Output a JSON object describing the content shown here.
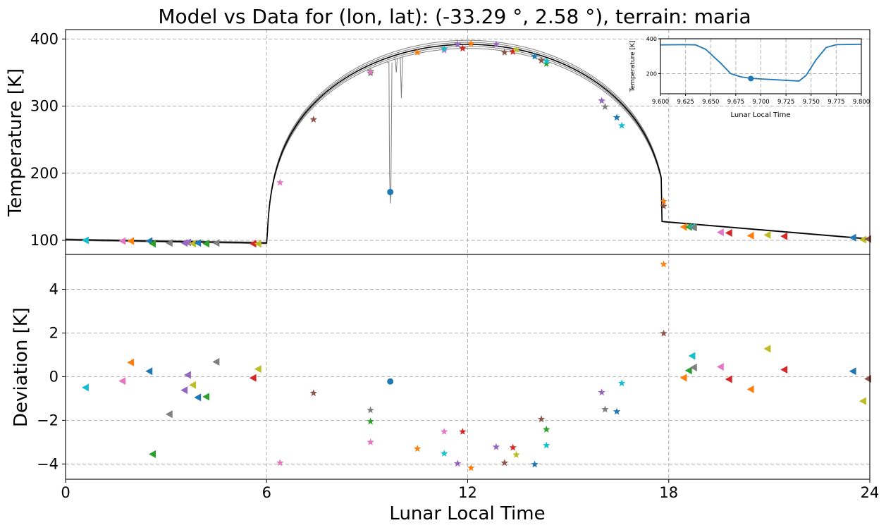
{
  "title": "Model vs Data for (lon, lat): (-33.29 °, 2.58 °), terrain: maria",
  "colors": {
    "model_curve": "#000000",
    "model_band": "#7f7f7f",
    "highlight_point": "#1f77b4",
    "grid": "#b0b0b0",
    "palette": [
      "#1f77b4",
      "#ff7f0e",
      "#2ca02c",
      "#d62728",
      "#9467bd",
      "#8c564b",
      "#e377c2",
      "#7f7f7f",
      "#bcbd22",
      "#17becf"
    ]
  },
  "chart_data": [
    {
      "id": "temperature",
      "type": "line",
      "ylabel": "Temperature [K]",
      "xlim": [
        0,
        24
      ],
      "ylim": [
        79,
        414
      ],
      "xticks": [
        0,
        6,
        12,
        18,
        24
      ],
      "yticks": [
        100,
        200,
        300,
        400
      ],
      "grid": true,
      "model": {
        "night_start": 101,
        "night_end": 96,
        "dawn_hour": 6.0,
        "noon_temp": 392,
        "dusk_hour": 17.8,
        "dusk_temp": 128,
        "end_temp": 102
      },
      "highlight_point": {
        "x": 9.69,
        "y": 172,
        "marker": "circle"
      },
      "dip_lines": [
        {
          "x": [
            9.6,
            9.65,
            9.67,
            9.69,
            9.71,
            9.74
          ],
          "y": [
            365,
            365,
            200,
            155,
            175,
            365
          ]
        },
        {
          "x": [
            9.8,
            9.84,
            9.87,
            9.9
          ],
          "y": [
            370,
            370,
            350,
            372
          ]
        },
        {
          "x": [
            9.95,
            9.99,
            10.02,
            10.06
          ],
          "y": [
            372,
            372,
            312,
            374
          ]
        }
      ],
      "observations": [
        {
          "x": 0.6,
          "y": 100,
          "m": "tri",
          "c": 9
        },
        {
          "x": 1.7,
          "y": 99,
          "m": "tri",
          "c": 6
        },
        {
          "x": 1.95,
          "y": 99,
          "m": "tri",
          "c": 1
        },
        {
          "x": 2.5,
          "y": 99,
          "m": "tri",
          "c": 0
        },
        {
          "x": 2.6,
          "y": 95,
          "m": "tri",
          "c": 2
        },
        {
          "x": 3.1,
          "y": 96,
          "m": "tri",
          "c": 7
        },
        {
          "x": 3.55,
          "y": 96,
          "m": "tri",
          "c": 4
        },
        {
          "x": 3.65,
          "y": 97,
          "m": "tri",
          "c": 4
        },
        {
          "x": 3.8,
          "y": 95,
          "m": "tri",
          "c": 8
        },
        {
          "x": 3.95,
          "y": 96,
          "m": "tri",
          "c": 0
        },
        {
          "x": 4.2,
          "y": 95,
          "m": "tri",
          "c": 2
        },
        {
          "x": 4.5,
          "y": 96,
          "m": "tri",
          "c": 7
        },
        {
          "x": 5.6,
          "y": 95,
          "m": "tri",
          "c": 3
        },
        {
          "x": 5.75,
          "y": 95,
          "m": "tri",
          "c": 8
        },
        {
          "x": 6.4,
          "y": 186,
          "m": "star",
          "c": 6
        },
        {
          "x": 7.4,
          "y": 280,
          "m": "star",
          "c": 5
        },
        {
          "x": 9.1,
          "y": 349,
          "m": "star",
          "c": 7
        },
        {
          "x": 9.1,
          "y": 352,
          "m": "star",
          "c": 2
        },
        {
          "x": 9.1,
          "y": 351,
          "m": "star",
          "c": 6
        },
        {
          "x": 10.5,
          "y": 380,
          "m": "star",
          "c": 1
        },
        {
          "x": 11.3,
          "y": 383,
          "m": "star",
          "c": 6
        },
        {
          "x": 11.3,
          "y": 385,
          "m": "star",
          "c": 9
        },
        {
          "x": 11.7,
          "y": 392,
          "m": "star",
          "c": 4
        },
        {
          "x": 11.85,
          "y": 386,
          "m": "star",
          "c": 3
        },
        {
          "x": 12.1,
          "y": 393,
          "m": "star",
          "c": 1
        },
        {
          "x": 12.85,
          "y": 392,
          "m": "star",
          "c": 4
        },
        {
          "x": 13.1,
          "y": 380,
          "m": "star",
          "c": 5
        },
        {
          "x": 13.35,
          "y": 381,
          "m": "star",
          "c": 3
        },
        {
          "x": 13.45,
          "y": 384,
          "m": "star",
          "c": 8
        },
        {
          "x": 14.0,
          "y": 374,
          "m": "star",
          "c": 0
        },
        {
          "x": 14.2,
          "y": 368,
          "m": "star",
          "c": 5
        },
        {
          "x": 14.35,
          "y": 363,
          "m": "star",
          "c": 2
        },
        {
          "x": 14.35,
          "y": 367,
          "m": "star",
          "c": 9
        },
        {
          "x": 16.0,
          "y": 308,
          "m": "star",
          "c": 4
        },
        {
          "x": 16.1,
          "y": 299,
          "m": "star",
          "c": 7
        },
        {
          "x": 16.45,
          "y": 283,
          "m": "star",
          "c": 0
        },
        {
          "x": 16.6,
          "y": 271,
          "m": "star",
          "c": 9
        },
        {
          "x": 17.85,
          "y": 158,
          "m": "star",
          "c": 1
        },
        {
          "x": 17.85,
          "y": 151,
          "m": "star",
          "c": 5
        },
        {
          "x": 18.45,
          "y": 120,
          "m": "tri",
          "c": 1
        },
        {
          "x": 18.6,
          "y": 120,
          "m": "tri",
          "c": 2
        },
        {
          "x": 18.7,
          "y": 120,
          "m": "tri",
          "c": 9
        },
        {
          "x": 18.75,
          "y": 119,
          "m": "tri",
          "c": 7
        },
        {
          "x": 19.55,
          "y": 112,
          "m": "tri",
          "c": 6
        },
        {
          "x": 19.8,
          "y": 111,
          "m": "tri",
          "c": 3
        },
        {
          "x": 20.45,
          "y": 107,
          "m": "tri",
          "c": 1
        },
        {
          "x": 20.95,
          "y": 108,
          "m": "tri",
          "c": 8
        },
        {
          "x": 21.45,
          "y": 106,
          "m": "tri",
          "c": 3
        },
        {
          "x": 23.5,
          "y": 104,
          "m": "tri",
          "c": 0
        },
        {
          "x": 23.8,
          "y": 101,
          "m": "tri",
          "c": 8
        },
        {
          "x": 23.95,
          "y": 102,
          "m": "tri",
          "c": 5
        }
      ]
    },
    {
      "id": "deviation",
      "type": "scatter",
      "xlabel": "Lunar Local Time",
      "ylabel": "Deviation [K]",
      "xlim": [
        0,
        24
      ],
      "ylim": [
        -4.7,
        5.6
      ],
      "xticks": [
        0,
        6,
        12,
        18,
        24
      ],
      "xticklabels": [
        "0",
        "6",
        "12",
        "18",
        "24"
      ],
      "yticks": [
        -4,
        -2,
        0,
        2,
        4
      ],
      "yticklabels": [
        "−4",
        "−2",
        "0",
        "2",
        "4"
      ],
      "grid": true,
      "highlight_point": {
        "x": 9.69,
        "y": -0.22,
        "marker": "circle"
      },
      "points": [
        {
          "x": 0.6,
          "y": -0.5,
          "m": "tri",
          "c": 9
        },
        {
          "x": 1.7,
          "y": -0.2,
          "m": "tri",
          "c": 6
        },
        {
          "x": 1.95,
          "y": 0.65,
          "m": "tri",
          "c": 1
        },
        {
          "x": 2.5,
          "y": 0.25,
          "m": "tri",
          "c": 0
        },
        {
          "x": 2.6,
          "y": -3.55,
          "m": "tri",
          "c": 2
        },
        {
          "x": 3.1,
          "y": -1.72,
          "m": "tri",
          "c": 7
        },
        {
          "x": 3.55,
          "y": -0.62,
          "m": "tri",
          "c": 4
        },
        {
          "x": 3.65,
          "y": 0.08,
          "m": "tri",
          "c": 4
        },
        {
          "x": 3.8,
          "y": -0.38,
          "m": "tri",
          "c": 8
        },
        {
          "x": 3.95,
          "y": -0.95,
          "m": "tri",
          "c": 0
        },
        {
          "x": 4.2,
          "y": -0.92,
          "m": "tri",
          "c": 2
        },
        {
          "x": 4.5,
          "y": 0.68,
          "m": "tri",
          "c": 7
        },
        {
          "x": 5.6,
          "y": -0.06,
          "m": "tri",
          "c": 3
        },
        {
          "x": 5.75,
          "y": 0.35,
          "m": "tri",
          "c": 8
        },
        {
          "x": 6.4,
          "y": -3.95,
          "m": "star",
          "c": 6
        },
        {
          "x": 7.4,
          "y": -0.75,
          "m": "star",
          "c": 5
        },
        {
          "x": 9.1,
          "y": -1.53,
          "m": "star",
          "c": 7
        },
        {
          "x": 9.1,
          "y": -2.05,
          "m": "star",
          "c": 2
        },
        {
          "x": 9.1,
          "y": -3.0,
          "m": "star",
          "c": 6
        },
        {
          "x": 10.5,
          "y": -3.3,
          "m": "star",
          "c": 1
        },
        {
          "x": 11.3,
          "y": -2.52,
          "m": "star",
          "c": 6
        },
        {
          "x": 11.3,
          "y": -3.52,
          "m": "star",
          "c": 9
        },
        {
          "x": 11.7,
          "y": -3.98,
          "m": "star",
          "c": 4
        },
        {
          "x": 11.85,
          "y": -2.52,
          "m": "star",
          "c": 3
        },
        {
          "x": 12.1,
          "y": -4.18,
          "m": "star",
          "c": 1
        },
        {
          "x": 12.85,
          "y": -3.22,
          "m": "star",
          "c": 4
        },
        {
          "x": 13.1,
          "y": -3.95,
          "m": "star",
          "c": 5
        },
        {
          "x": 13.35,
          "y": -3.25,
          "m": "star",
          "c": 3
        },
        {
          "x": 13.45,
          "y": -3.58,
          "m": "star",
          "c": 8
        },
        {
          "x": 14.0,
          "y": -4.02,
          "m": "star",
          "c": 0
        },
        {
          "x": 14.2,
          "y": -1.95,
          "m": "star",
          "c": 5
        },
        {
          "x": 14.35,
          "y": -2.42,
          "m": "star",
          "c": 2
        },
        {
          "x": 14.35,
          "y": -3.15,
          "m": "star",
          "c": 9
        },
        {
          "x": 16.0,
          "y": -0.72,
          "m": "star",
          "c": 4
        },
        {
          "x": 16.1,
          "y": -1.5,
          "m": "star",
          "c": 7
        },
        {
          "x": 16.45,
          "y": -1.6,
          "m": "star",
          "c": 0
        },
        {
          "x": 16.6,
          "y": -0.3,
          "m": "star",
          "c": 9
        },
        {
          "x": 17.85,
          "y": 5.15,
          "m": "star",
          "c": 1
        },
        {
          "x": 17.85,
          "y": 1.98,
          "m": "star",
          "c": 5
        },
        {
          "x": 18.45,
          "y": -0.05,
          "m": "tri",
          "c": 1
        },
        {
          "x": 18.6,
          "y": 0.28,
          "m": "tri",
          "c": 2
        },
        {
          "x": 18.7,
          "y": 0.95,
          "m": "tri",
          "c": 9
        },
        {
          "x": 18.75,
          "y": 0.42,
          "m": "tri",
          "c": 7
        },
        {
          "x": 19.55,
          "y": 0.45,
          "m": "tri",
          "c": 6
        },
        {
          "x": 19.8,
          "y": -0.12,
          "m": "tri",
          "c": 3
        },
        {
          "x": 20.45,
          "y": -0.58,
          "m": "tri",
          "c": 1
        },
        {
          "x": 20.95,
          "y": 1.28,
          "m": "tri",
          "c": 8
        },
        {
          "x": 21.45,
          "y": 0.32,
          "m": "tri",
          "c": 3
        },
        {
          "x": 23.5,
          "y": 0.25,
          "m": "tri",
          "c": 0
        },
        {
          "x": 23.8,
          "y": -1.12,
          "m": "tri",
          "c": 8
        },
        {
          "x": 23.95,
          "y": -0.1,
          "m": "tri",
          "c": 5
        }
      ]
    },
    {
      "id": "inset",
      "type": "line",
      "xlabel": "Lunar Local Time",
      "ylabel": "Temperature [K]",
      "xlim": [
        9.6,
        9.8
      ],
      "ylim": [
        85,
        400
      ],
      "xticks": [
        9.6,
        9.625,
        9.65,
        9.675,
        9.7,
        9.725,
        9.75,
        9.775,
        9.8
      ],
      "xticklabels": [
        "9.600",
        "9.625",
        "9.650",
        "9.675",
        "9.700",
        "9.725",
        "9.750",
        "9.775",
        "9.800"
      ],
      "yticks": [
        200,
        400
      ],
      "yticklabels": [
        "200",
        "400"
      ],
      "grid": true,
      "color": "#1f77b4",
      "x": [
        9.6,
        9.625,
        9.635,
        9.645,
        9.66,
        9.67,
        9.68,
        9.69,
        9.7,
        9.715,
        9.73,
        9.738,
        9.745,
        9.755,
        9.765,
        9.775,
        9.8
      ],
      "y": [
        365,
        366,
        365,
        340,
        260,
        200,
        182,
        174,
        170,
        165,
        160,
        158,
        190,
        280,
        350,
        366,
        368
      ],
      "highlight_point": {
        "x": 9.69,
        "y": 172
      }
    }
  ]
}
